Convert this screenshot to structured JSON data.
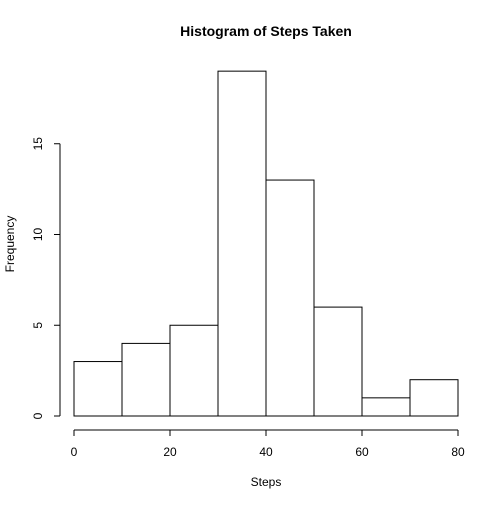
{
  "chart_data": {
    "type": "bar",
    "title": "Histogram of Steps Taken",
    "xlabel": "Steps",
    "ylabel": "Frequency",
    "bin_edges": [
      0,
      10,
      20,
      30,
      40,
      50,
      60,
      70,
      80
    ],
    "values": [
      3,
      4,
      5,
      19,
      13,
      6,
      1,
      2
    ],
    "xlim": [
      0,
      80
    ],
    "ylim": [
      0,
      20
    ],
    "x_ticks": [
      0,
      20,
      40,
      60,
      80
    ],
    "y_ticks": [
      0,
      5,
      10,
      15
    ],
    "grid": false,
    "colors": {
      "bar_fill": "#ffffff",
      "bar_stroke": "#000000",
      "axis": "#000000"
    }
  }
}
